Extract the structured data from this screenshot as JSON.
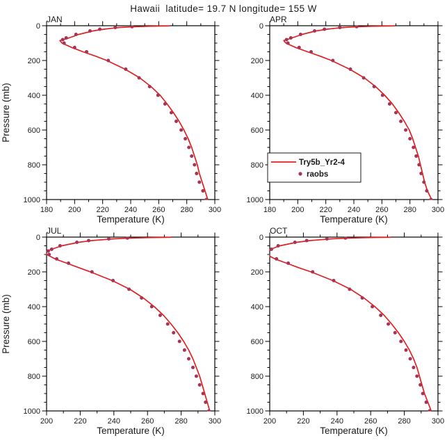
{
  "title": "Hawaii  latitude= 19.7 N longitude= 155 W",
  "legend": {
    "line_label": "Try5b_Yr2-4",
    "dots_label": "raobs"
  },
  "style": {
    "line_color": "#e22020",
    "dot_color": "#a83355",
    "axis_color": "#000000",
    "text_color": "#1a1a1a",
    "background": "#ffffff"
  },
  "chart_data": [
    {
      "type": "line",
      "label": "JAN",
      "xlabel": "Temperature (K)",
      "ylabel": "Pressure (mb)",
      "xlim": [
        180,
        300
      ],
      "ylim": [
        1000,
        0
      ],
      "xticks": [
        180,
        200,
        220,
        240,
        260,
        280,
        300
      ],
      "yticks": [
        0,
        200,
        400,
        600,
        800,
        1000
      ],
      "show_ylabel": true,
      "show_legend": false,
      "series": [
        {
          "name": "Try5b_Yr2-4",
          "mode": "line",
          "pressure_mb": [
            1,
            2,
            3,
            5,
            7,
            10,
            15,
            20,
            30,
            50,
            70,
            85,
            100,
            125,
            150,
            175,
            200,
            250,
            300,
            350,
            400,
            450,
            500,
            550,
            600,
            650,
            700,
            750,
            800,
            850,
            900,
            950,
            1000
          ],
          "temperature_K": [
            268,
            259,
            253,
            245,
            239,
            232,
            226,
            221,
            213,
            203,
            196,
            189.5,
            191,
            198,
            206,
            215,
            223,
            236,
            246.5,
            254.5,
            261,
            266,
            270.5,
            274.5,
            278,
            281,
            283.5,
            285.5,
            287.5,
            289,
            291,
            293,
            295
          ]
        },
        {
          "name": "raobs",
          "mode": "scatter",
          "pressure_mb": [
            5,
            10,
            20,
            30,
            50,
            70,
            80,
            100,
            125,
            150,
            200,
            250,
            300,
            350,
            400,
            450,
            500,
            550,
            600,
            650,
            700,
            750,
            800,
            850,
            900,
            950,
            1000
          ],
          "temperature_K": [
            241,
            229,
            218,
            211,
            201,
            194,
            191.5,
            192.5,
            200,
            208.5,
            224,
            236.5,
            246,
            253.5,
            259.5,
            264.5,
            269,
            272.5,
            276,
            279,
            281.5,
            283.5,
            285.5,
            287,
            289,
            291.5,
            294
          ]
        }
      ]
    },
    {
      "type": "line",
      "label": "APR",
      "xlabel": "Temperature (K)",
      "xlim": [
        180,
        300
      ],
      "ylim": [
        1000,
        0
      ],
      "xticks": [
        180,
        200,
        220,
        240,
        260,
        280,
        300
      ],
      "yticks": [
        0,
        200,
        400,
        600,
        800,
        1000
      ],
      "show_ylabel": false,
      "show_legend": true,
      "series": [
        {
          "name": "Try5b_Yr2-4",
          "mode": "line",
          "pressure_mb": [
            1,
            2,
            3,
            5,
            7,
            10,
            15,
            20,
            30,
            50,
            70,
            85,
            100,
            125,
            150,
            175,
            200,
            250,
            300,
            350,
            400,
            450,
            500,
            550,
            600,
            650,
            700,
            750,
            800,
            850,
            900,
            950,
            1000
          ],
          "temperature_K": [
            269,
            260,
            253,
            245,
            239,
            233,
            226,
            221,
            213,
            203,
            196,
            190,
            191.5,
            198.5,
            207,
            216,
            224,
            237,
            247.5,
            255.5,
            262,
            267.5,
            272,
            276,
            279.5,
            282,
            284,
            286,
            287.5,
            289,
            290.5,
            292.5,
            295.5
          ]
        },
        {
          "name": "raobs",
          "mode": "scatter",
          "pressure_mb": [
            5,
            10,
            20,
            30,
            50,
            70,
            80,
            100,
            125,
            150,
            200,
            250,
            300,
            350,
            400,
            450,
            500,
            550,
            600,
            650,
            700,
            750,
            800,
            850,
            900,
            950,
            1000
          ],
          "temperature_K": [
            242,
            230,
            219,
            212,
            202,
            195,
            192,
            193,
            201,
            209.5,
            225,
            237.5,
            247,
            254.5,
            260.5,
            265.5,
            270,
            273.5,
            277,
            280,
            282.5,
            284.5,
            286.5,
            288,
            290,
            292,
            295
          ]
        }
      ]
    },
    {
      "type": "line",
      "label": "JUL",
      "xlabel": "Temperature (K)",
      "ylabel": "Pressure (mb)",
      "xlim": [
        200,
        300
      ],
      "ylim": [
        1000,
        0
      ],
      "xticks": [
        200,
        220,
        240,
        260,
        280,
        300
      ],
      "yticks": [
        0,
        200,
        400,
        600,
        800,
        1000
      ],
      "show_ylabel": true,
      "show_legend": false,
      "series": [
        {
          "name": "Try5b_Yr2-4",
          "mode": "line",
          "pressure_mb": [
            1,
            2,
            3,
            5,
            7,
            10,
            15,
            20,
            30,
            50,
            70,
            85,
            100,
            125,
            150,
            175,
            200,
            250,
            300,
            350,
            400,
            450,
            500,
            550,
            600,
            650,
            700,
            750,
            800,
            850,
            900,
            950,
            1000
          ],
          "temperature_K": [
            274,
            266,
            260,
            252,
            246,
            240,
            233,
            227,
            219,
            209,
            203,
            199,
            200,
            205,
            212,
            219,
            226,
            239,
            249.5,
            257.5,
            264,
            269.5,
            274,
            278,
            281.5,
            284.5,
            287,
            289,
            291,
            292.5,
            294,
            295.5,
            297
          ]
        },
        {
          "name": "raobs",
          "mode": "scatter",
          "pressure_mb": [
            5,
            10,
            20,
            30,
            50,
            70,
            80,
            100,
            125,
            150,
            200,
            250,
            300,
            350,
            400,
            450,
            500,
            550,
            600,
            650,
            700,
            750,
            800,
            850,
            900,
            950,
            1000
          ],
          "temperature_K": [
            248,
            237,
            225,
            218,
            208,
            203,
            201,
            201.5,
            206,
            213,
            227,
            239.5,
            249,
            256.5,
            262.5,
            267.5,
            272,
            275.5,
            279,
            282,
            284.5,
            287,
            289,
            291,
            293,
            294.5,
            296.5
          ]
        }
      ]
    },
    {
      "type": "line",
      "label": "OCT",
      "xlabel": "Temperature (K)",
      "xlim": [
        200,
        300
      ],
      "ylim": [
        1000,
        0
      ],
      "xticks": [
        200,
        220,
        240,
        260,
        280,
        300
      ],
      "yticks": [
        0,
        200,
        400,
        600,
        800,
        1000
      ],
      "show_ylabel": false,
      "show_legend": false,
      "series": [
        {
          "name": "Try5b_Yr2-4",
          "mode": "line",
          "pressure_mb": [
            1,
            2,
            3,
            5,
            7,
            10,
            15,
            20,
            30,
            50,
            70,
            85,
            100,
            125,
            150,
            175,
            200,
            250,
            300,
            350,
            400,
            450,
            500,
            550,
            600,
            650,
            700,
            750,
            800,
            850,
            900,
            950,
            1000
          ],
          "temperature_K": [
            272,
            263,
            257,
            249,
            243,
            237,
            230,
            224,
            216,
            206,
            200.5,
            197,
            198,
            203,
            210,
            217,
            224.5,
            237.5,
            248,
            256,
            262.5,
            268,
            272.5,
            276.5,
            280,
            283,
            285.5,
            287.5,
            289,
            290.5,
            292,
            294,
            296
          ]
        },
        {
          "name": "raobs",
          "mode": "scatter",
          "pressure_mb": [
            5,
            10,
            20,
            30,
            50,
            70,
            80,
            100,
            125,
            150,
            200,
            250,
            300,
            350,
            400,
            450,
            500,
            550,
            600,
            650,
            700,
            750,
            800,
            850,
            900,
            950,
            1000
          ],
          "temperature_K": [
            245,
            234,
            222,
            215,
            205,
            201,
            198.5,
            199,
            204,
            211,
            225.5,
            238,
            247.5,
            255,
            261,
            266,
            270.5,
            274.5,
            278,
            281,
            283.5,
            285.5,
            287.5,
            289.5,
            291,
            293,
            295
          ]
        }
      ]
    }
  ]
}
